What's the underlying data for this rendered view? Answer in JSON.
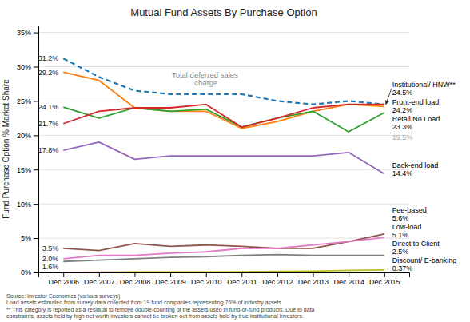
{
  "chart_data": {
    "type": "line",
    "title": "Mutual Fund Assets By Purchase Option",
    "y_label": "Fund Purchase Option % Market Share",
    "categories": [
      "Dec 2006",
      "Dec 2007",
      "Dec 2008",
      "Dec 2009",
      "Dec 2010",
      "Dec 2011",
      "Dec 2012",
      "Dec 2013",
      "Dec 2014",
      "Dec 2015"
    ],
    "series": [
      {
        "values": [
          31.2,
          28.5,
          26.5,
          26.0,
          26.0,
          26.0,
          25.0,
          24.5,
          25.0,
          24.5
        ],
        "line_style": "dashed"
      },
      {
        "values": [
          29.2,
          28.0,
          24.0,
          23.5,
          23.5,
          21.0,
          22.0,
          23.5,
          24.5,
          24.2
        ],
        "line_style": "solid"
      },
      {
        "values": [
          24.1,
          22.5,
          24.0,
          23.5,
          23.8,
          21.2,
          22.5,
          23.5,
          20.5,
          23.3
        ],
        "line_style": "solid"
      },
      {
        "values": [
          21.7,
          23.5,
          24.0,
          24.0,
          24.5,
          21.2,
          22.5,
          24.0,
          24.5,
          24.5
        ],
        "line_style": "solid"
      },
      {
        "values": [
          17.8,
          19.0,
          16.5,
          17.0,
          17.0,
          17.0,
          17.0,
          17.0,
          17.5,
          14.4
        ],
        "line_style": "solid"
      },
      {
        "values": [
          3.5,
          3.2,
          4.2,
          3.8,
          4.0,
          3.8,
          3.5,
          3.5,
          4.5,
          5.6
        ],
        "line_style": "solid"
      },
      {
        "values": [
          2.0,
          2.5,
          2.5,
          2.8,
          3.0,
          3.5,
          3.5,
          4.0,
          4.5,
          5.1
        ],
        "line_style": "solid"
      },
      {
        "values": [
          1.6,
          1.8,
          2.0,
          2.2,
          2.3,
          2.5,
          2.6,
          2.5,
          2.5,
          2.5
        ],
        "line_style": "solid"
      },
      {
        "values": [
          0.0,
          0.05,
          0.07,
          0.08,
          0.08,
          0.1,
          0.15,
          0.2,
          0.3,
          0.37
        ],
        "line_style": "solid"
      }
    ],
    "ylim": [
      0,
      36
    ],
    "yticks": [
      {
        "value": 0,
        "label": "0%"
      },
      {
        "value": 5,
        "label": "5%"
      },
      {
        "value": 10,
        "label": "10%"
      },
      {
        "value": 15,
        "label": "15%"
      },
      {
        "value": 20,
        "label": "20%"
      },
      {
        "value": 25,
        "label": "25%"
      },
      {
        "value": 30,
        "label": "30%"
      },
      {
        "value": 35,
        "label": "35%"
      }
    ],
    "grid": true,
    "annotations": [
      {
        "text": "31.2%",
        "x": "Dec 2006",
        "y": 31.2
      },
      {
        "text": "29.2%",
        "x": "Dec 2006",
        "y": 29.2
      },
      {
        "text": "24.1%",
        "x": "Dec 2006",
        "y": 24.1
      },
      {
        "text": "21.7%",
        "x": "Dec 2006",
        "y": 21.7
      },
      {
        "text": "17.8%",
        "x": "Dec 2006",
        "y": 17.8
      },
      {
        "text": "3.5%",
        "x": "Dec 2006",
        "y": 3.5
      },
      {
        "text": "2.0%",
        "x": "Dec 2006",
        "y": 2.0
      },
      {
        "text": "1.6%",
        "x": "Dec 2006",
        "y": 1.6
      },
      {
        "text": "Institutional/ HNW**\n24.5%",
        "x": "Dec 2015",
        "y": 26.8,
        "arrow_y": 24.5,
        "color": "#000000"
      },
      {
        "text": "Front-end load\n24.2%",
        "x": "Dec 2015",
        "y": 24.2,
        "color": "#000000"
      },
      {
        "text": "Retail No Load\n23.3%",
        "x": "Dec 2015",
        "y": 22.3,
        "color": "#000000"
      },
      {
        "text": "19.5%",
        "x": "Dec 2015",
        "y": 19.7,
        "color": "#aaaaaa"
      },
      {
        "text": "Back-end load\n14.4%",
        "x": "Dec 2015",
        "y": 15.0,
        "color": "#000000"
      },
      {
        "text": "Fee-based\n5.6%",
        "x": "Dec 2015",
        "y": 6.3,
        "color": "#000000"
      },
      {
        "text": "Low-load\n5.1%",
        "x": "Dec 2015",
        "y": 4.8,
        "color": "#000000"
      },
      {
        "text": "Direct to Client\n2.5%",
        "x": "Dec 2015",
        "y": 3.0,
        "color": "#000000"
      },
      {
        "text": "Discount/ E-banking\n0.37%",
        "x": "Dec 2015",
        "y": 1.2,
        "color": "#000000"
      },
      {
        "text": "Total deferred sales\ncharge",
        "x": "Dec 2010",
        "y": 28.2,
        "color": "#888888"
      }
    ],
    "footnote": "Source: Investor Economics (various surveys)\nLoad assets estimated from survey data collected from 19 fund companies representing 76% of industry assets\n** This category is reported as a residual to remove double-counting of the assets used in fund-of-fund products. Due to data\nconstraints, assets held by high net worth investors cannot be broken out from assets held by true institutional investors."
  }
}
